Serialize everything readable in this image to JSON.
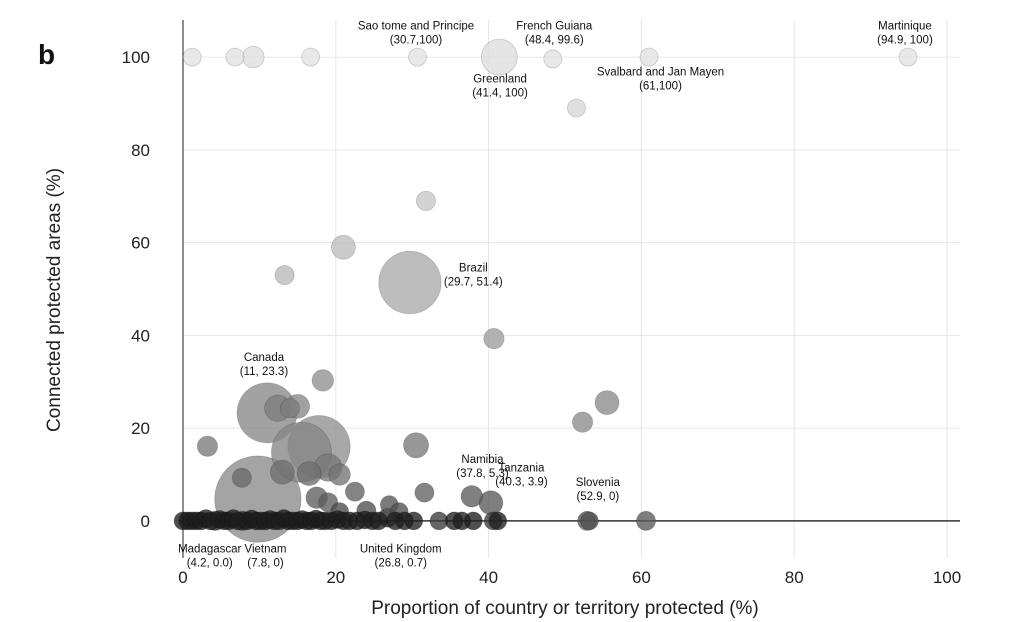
{
  "panel_label": "b",
  "chart_data": {
    "type": "scatter",
    "xlabel": "Proportion of country or territory protected (%)",
    "ylabel": "Connected protected areas (%)",
    "xlim": [
      0,
      100
    ],
    "ylim": [
      -8,
      108
    ],
    "xticks": [
      0,
      20,
      40,
      60,
      80,
      100
    ],
    "yticks": [
      0,
      20,
      40,
      60,
      80,
      100
    ],
    "grid": true,
    "points": [
      {
        "x": 1.2,
        "y": 100,
        "size": 1.5,
        "shade": "#e2e2e2"
      },
      {
        "x": 6.8,
        "y": 100,
        "size": 1.5,
        "shade": "#e2e2e2"
      },
      {
        "x": 9.2,
        "y": 100,
        "size": 1.8,
        "shade": "#dedede"
      },
      {
        "x": 16.7,
        "y": 100,
        "size": 1.5,
        "shade": "#e2e2e2"
      },
      {
        "x": 30.7,
        "y": 100,
        "size": 1.5,
        "shade": "#e2e2e2"
      },
      {
        "x": 41.4,
        "y": 100,
        "size": 3.0,
        "shade": "#dcdcdc"
      },
      {
        "x": 48.4,
        "y": 99.6,
        "size": 1.5,
        "shade": "#e2e2e2"
      },
      {
        "x": 61,
        "y": 100,
        "size": 1.5,
        "shade": "#e2e2e2"
      },
      {
        "x": 94.9,
        "y": 100,
        "size": 1.5,
        "shade": "#e2e2e2"
      },
      {
        "x": 51.5,
        "y": 89,
        "size": 1.5,
        "shade": "#d6d6d6"
      },
      {
        "x": 31.8,
        "y": 69,
        "size": 1.6,
        "shade": "#c6c6c6"
      },
      {
        "x": 21.0,
        "y": 59,
        "size": 2.0,
        "shade": "#bdbdbd"
      },
      {
        "x": 13.3,
        "y": 53,
        "size": 1.6,
        "shade": "#b8b8b8"
      },
      {
        "x": 29.7,
        "y": 51.4,
        "size": 5.2,
        "shade": "#aaaaaa"
      },
      {
        "x": 40.7,
        "y": 39.3,
        "size": 1.7,
        "shade": "#9c9c9c"
      },
      {
        "x": 18.3,
        "y": 30.3,
        "size": 1.8,
        "shade": "#909090"
      },
      {
        "x": 55.5,
        "y": 25.5,
        "size": 2.0,
        "shade": "#8a8a8a"
      },
      {
        "x": 52.3,
        "y": 21.3,
        "size": 1.7,
        "shade": "#8c8c8c"
      },
      {
        "x": 11.0,
        "y": 23.3,
        "size": 5.0,
        "shade": "#888888"
      },
      {
        "x": 12.4,
        "y": 24.3,
        "size": 2.2,
        "shade": "#7c7c7c"
      },
      {
        "x": 15.0,
        "y": 24.7,
        "size": 2.0,
        "shade": "#858585"
      },
      {
        "x": 14.0,
        "y": 24.3,
        "size": 1.6,
        "shade": "#7e7e7e"
      },
      {
        "x": 17.8,
        "y": 16.0,
        "size": 5.2,
        "shade": "#909090"
      },
      {
        "x": 15.5,
        "y": 14.8,
        "size": 5.0,
        "shade": "#858585"
      },
      {
        "x": 3.2,
        "y": 16.1,
        "size": 1.7,
        "shade": "#7a7a7a"
      },
      {
        "x": 30.5,
        "y": 16.3,
        "size": 2.1,
        "shade": "#7a7a7a"
      },
      {
        "x": 19.0,
        "y": 11.5,
        "size": 2.3,
        "shade": "#777777"
      },
      {
        "x": 16.5,
        "y": 10.2,
        "size": 2.0,
        "shade": "#6e6e6e"
      },
      {
        "x": 20.5,
        "y": 10.0,
        "size": 1.8,
        "shade": "#737373"
      },
      {
        "x": 13.0,
        "y": 10.5,
        "size": 2.0,
        "shade": "#6f6f6f"
      },
      {
        "x": 7.7,
        "y": 9.3,
        "size": 1.6,
        "shade": "#6a6a6a"
      },
      {
        "x": 9.8,
        "y": 4.7,
        "size": 7.2,
        "shade": "#8a8a8a"
      },
      {
        "x": 22.5,
        "y": 6.3,
        "size": 1.6,
        "shade": "#626262"
      },
      {
        "x": 31.6,
        "y": 6.1,
        "size": 1.6,
        "shade": "#616161"
      },
      {
        "x": 37.8,
        "y": 5.3,
        "size": 1.8,
        "shade": "#5c5c5c"
      },
      {
        "x": 40.3,
        "y": 3.9,
        "size": 2.0,
        "shade": "#5a5a5a"
      },
      {
        "x": 17.5,
        "y": 5.0,
        "size": 1.8,
        "shade": "#5e5e5e"
      },
      {
        "x": 19.0,
        "y": 4.0,
        "size": 1.6,
        "shade": "#5e5e5e"
      },
      {
        "x": 27.0,
        "y": 3.5,
        "size": 1.5,
        "shade": "#565656"
      },
      {
        "x": 24.0,
        "y": 2.2,
        "size": 1.6,
        "shade": "#505050"
      },
      {
        "x": 26.8,
        "y": 0.7,
        "size": 1.6,
        "shade": "#333333"
      },
      {
        "x": 20.5,
        "y": 2.0,
        "size": 1.5,
        "shade": "#4a4a4a"
      },
      {
        "x": 28.3,
        "y": 2.0,
        "size": 1.5,
        "shade": "#4e4e4e"
      },
      {
        "x": 4.2,
        "y": 0.0,
        "size": 1.6,
        "shade": "#262626"
      },
      {
        "x": 7.8,
        "y": 0.0,
        "size": 1.6,
        "shade": "#262626"
      },
      {
        "x": 52.9,
        "y": 0.0,
        "size": 1.6,
        "shade": "#555555"
      },
      {
        "x": 53.2,
        "y": 0.0,
        "size": 1.5,
        "shade": "#505050"
      },
      {
        "x": 60.6,
        "y": 0.0,
        "size": 1.6,
        "shade": "#5a5a5a"
      },
      {
        "x": 0.0,
        "y": 0.0,
        "size": 1.5,
        "shade": "#1e1e1e"
      },
      {
        "x": 0.6,
        "y": 0.0,
        "size": 1.5,
        "shade": "#1e1e1e"
      },
      {
        "x": 1.2,
        "y": 0.0,
        "size": 1.5,
        "shade": "#1e1e1e"
      },
      {
        "x": 1.8,
        "y": 0.0,
        "size": 1.5,
        "shade": "#1e1e1e"
      },
      {
        "x": 2.4,
        "y": 0.0,
        "size": 1.5,
        "shade": "#1e1e1e"
      },
      {
        "x": 3.0,
        "y": 0.5,
        "size": 1.5,
        "shade": "#1e1e1e"
      },
      {
        "x": 3.6,
        "y": 0.0,
        "size": 1.5,
        "shade": "#1e1e1e"
      },
      {
        "x": 4.8,
        "y": 0.3,
        "size": 1.5,
        "shade": "#1e1e1e"
      },
      {
        "x": 5.4,
        "y": 0.0,
        "size": 1.5,
        "shade": "#1e1e1e"
      },
      {
        "x": 6.0,
        "y": 0.0,
        "size": 1.5,
        "shade": "#1e1e1e"
      },
      {
        "x": 6.6,
        "y": 0.5,
        "size": 1.5,
        "shade": "#1e1e1e"
      },
      {
        "x": 7.2,
        "y": 0.0,
        "size": 1.5,
        "shade": "#1e1e1e"
      },
      {
        "x": 8.4,
        "y": 0.0,
        "size": 1.5,
        "shade": "#1e1e1e"
      },
      {
        "x": 9.0,
        "y": 0.4,
        "size": 1.5,
        "shade": "#1e1e1e"
      },
      {
        "x": 9.6,
        "y": 0.0,
        "size": 1.5,
        "shade": "#1e1e1e"
      },
      {
        "x": 10.2,
        "y": 0.0,
        "size": 1.5,
        "shade": "#1e1e1e"
      },
      {
        "x": 10.8,
        "y": 0.0,
        "size": 1.5,
        "shade": "#1e1e1e"
      },
      {
        "x": 11.4,
        "y": 0.3,
        "size": 1.5,
        "shade": "#1e1e1e"
      },
      {
        "x": 12.0,
        "y": 0.0,
        "size": 1.5,
        "shade": "#1e1e1e"
      },
      {
        "x": 12.6,
        "y": 0.0,
        "size": 1.5,
        "shade": "#1e1e1e"
      },
      {
        "x": 13.2,
        "y": 0.5,
        "size": 1.5,
        "shade": "#1e1e1e"
      },
      {
        "x": 13.8,
        "y": 0.0,
        "size": 1.5,
        "shade": "#1e1e1e"
      },
      {
        "x": 14.4,
        "y": 0.0,
        "size": 1.5,
        "shade": "#1e1e1e"
      },
      {
        "x": 15.0,
        "y": 0.0,
        "size": 1.5,
        "shade": "#1e1e1e"
      },
      {
        "x": 15.6,
        "y": 0.3,
        "size": 1.5,
        "shade": "#1e1e1e"
      },
      {
        "x": 16.2,
        "y": 0.0,
        "size": 1.5,
        "shade": "#1e1e1e"
      },
      {
        "x": 16.8,
        "y": 0.0,
        "size": 1.5,
        "shade": "#1e1e1e"
      },
      {
        "x": 17.4,
        "y": 0.4,
        "size": 1.5,
        "shade": "#1e1e1e"
      },
      {
        "x": 18.0,
        "y": 0.0,
        "size": 1.5,
        "shade": "#1e1e1e"
      },
      {
        "x": 18.6,
        "y": 0.0,
        "size": 1.5,
        "shade": "#1e1e1e"
      },
      {
        "x": 19.4,
        "y": 0.0,
        "size": 1.5,
        "shade": "#1e1e1e"
      },
      {
        "x": 20.2,
        "y": 0.3,
        "size": 1.5,
        "shade": "#1e1e1e"
      },
      {
        "x": 21.0,
        "y": 0.0,
        "size": 1.5,
        "shade": "#1e1e1e"
      },
      {
        "x": 21.8,
        "y": 0.0,
        "size": 1.5,
        "shade": "#1e1e1e"
      },
      {
        "x": 22.8,
        "y": 0.0,
        "size": 1.5,
        "shade": "#1e1e1e"
      },
      {
        "x": 23.8,
        "y": 0.2,
        "size": 1.5,
        "shade": "#1e1e1e"
      },
      {
        "x": 24.8,
        "y": 0.0,
        "size": 1.5,
        "shade": "#1e1e1e"
      },
      {
        "x": 25.6,
        "y": 0.0,
        "size": 1.5,
        "shade": "#1e1e1e"
      },
      {
        "x": 27.8,
        "y": 0.0,
        "size": 1.5,
        "shade": "#1e1e1e"
      },
      {
        "x": 29.0,
        "y": 0.0,
        "size": 1.5,
        "shade": "#1e1e1e"
      },
      {
        "x": 30.2,
        "y": 0.0,
        "size": 1.5,
        "shade": "#1e1e1e"
      },
      {
        "x": 33.5,
        "y": 0.0,
        "size": 1.5,
        "shade": "#3a3a3a"
      },
      {
        "x": 35.5,
        "y": 0.0,
        "size": 1.5,
        "shade": "#1e1e1e"
      },
      {
        "x": 36.5,
        "y": 0.0,
        "size": 1.5,
        "shade": "#1e1e1e"
      },
      {
        "x": 38.0,
        "y": 0.0,
        "size": 1.5,
        "shade": "#1e1e1e"
      },
      {
        "x": 40.6,
        "y": 0.0,
        "size": 1.5,
        "shade": "#3a3a3a"
      },
      {
        "x": 41.2,
        "y": 0.0,
        "size": 1.5,
        "shade": "#1e1e1e"
      }
    ],
    "annotations": [
      {
        "lines": [
          "Sao tome and Principe",
          "(30.7,100)"
        ],
        "x": 30.5,
        "y": 106,
        "anchor": "middle"
      },
      {
        "lines": [
          "French Guiana",
          "(48.4, 99.6)"
        ],
        "x": 48.6,
        "y": 106,
        "anchor": "middle"
      },
      {
        "lines": [
          "Martinique",
          "(94.9, 100)"
        ],
        "x": 94.5,
        "y": 106,
        "anchor": "middle"
      },
      {
        "lines": [
          "Greenland",
          "(41.4, 100)"
        ],
        "x": 41.5,
        "y": 94.5,
        "anchor": "middle"
      },
      {
        "lines": [
          "Svalbard and Jan Mayen",
          "(61,100)"
        ],
        "x": 62.5,
        "y": 96,
        "anchor": "middle"
      },
      {
        "lines": [
          "Brazil",
          "(29.7, 51.4)"
        ],
        "x": 38.0,
        "y": 53.8,
        "anchor": "middle"
      },
      {
        "lines": [
          "Canada",
          "(11, 23.3)"
        ],
        "x": 10.6,
        "y": 34.5,
        "anchor": "middle"
      },
      {
        "lines": [
          "Namibia",
          "(37.8, 5.3)"
        ],
        "x": 39.2,
        "y": 12.5,
        "anchor": "middle"
      },
      {
        "lines": [
          "Tanzania",
          "(40.3, 3.9)"
        ],
        "x": 44.3,
        "y": 10.7,
        "anchor": "middle"
      },
      {
        "lines": [
          "Slovenia",
          "(52.9, 0)"
        ],
        "x": 54.3,
        "y": 7.5,
        "anchor": "middle"
      },
      {
        "lines": [
          "Madagascar",
          "(4.2, 0.0)"
        ],
        "x": 3.5,
        "y": -6.8,
        "anchor": "middle"
      },
      {
        "lines": [
          "Vietnam",
          "(7.8, 0)"
        ],
        "x": 10.8,
        "y": -6.8,
        "anchor": "middle"
      },
      {
        "lines": [
          "United Kingdom",
          "(26.8, 0.7)"
        ],
        "x": 28.5,
        "y": -6.8,
        "anchor": "middle"
      }
    ]
  }
}
